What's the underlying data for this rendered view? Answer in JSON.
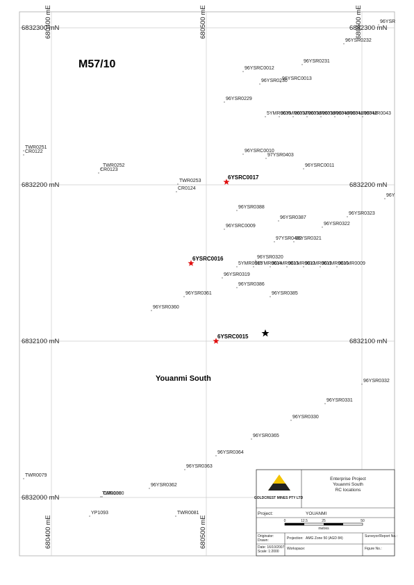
{
  "map": {
    "tenement": "M57/10",
    "area": "Youanmi South",
    "northings": [
      "6832300 mN",
      "6832200 mN",
      "6832100 mN",
      "6832000 mN"
    ],
    "eastings": [
      "680400 mE",
      "680500 mE",
      "680600 mE"
    ],
    "holes": [
      "96YSR",
      "96YSR0232",
      "96YSR0231",
      "96YSRC0012",
      "96YSRC0013",
      "96YSR0230",
      "96YSR0229",
      "5YMR0036",
      "96YMR0037",
      "96YMR0038",
      "96YMR0039",
      "96YMR0040",
      "96YMR0041",
      "96YMR0042",
      "96YMR0043",
      "TWR0251",
      "CR0122",
      "TWR0252",
      "CR0123",
      "96YSRC0010",
      "97YSR0403",
      "96YSRC0011",
      "TWR0253",
      "CR0124",
      "96Y",
      "96YSR0388",
      "96YSR0387",
      "96YSR0323",
      "96YSR0322",
      "96YSRC0009",
      "97YSR0402",
      "96YSR0321",
      "96YSR0320",
      "5YMR0015",
      "96YMR0014",
      "96YMR0013",
      "96YMR0012",
      "96YMR0011",
      "96YMR0010",
      "96YMR0009",
      "96YSR0319",
      "96YSR0386",
      "96YSR0361",
      "96YSR0385",
      "96YSR0360",
      "96YSR0332",
      "96YSR0331",
      "96YSR0330",
      "96YSR0365",
      "96YSR0364",
      "96YSR0363",
      "96YSR0362",
      "TWR0079",
      "TWR0080",
      "CR0130",
      "YP1093",
      "TWR0081"
    ],
    "highlighted": [
      "6YSRC0017",
      "6YSRC0016",
      "6YSRC0015"
    ]
  },
  "title_block": {
    "company": "GOLDCREST MINES PTY LTD",
    "heading": [
      "Enterprise Project",
      "Youanmi South",
      "RC locations"
    ],
    "project_label": "Project:",
    "project": "YOUANMI",
    "scale_ticks": [
      "0",
      "12.5",
      "25",
      "50"
    ],
    "scale_unit": "metres",
    "originator": "Originator:",
    "drawn": "Drawn:",
    "projection_label": "Projection:",
    "projection": "AMG Zone 50 (AGD 84)",
    "surveyor": "Surveyor/Report No.:",
    "date": "Date:   16/10/2007",
    "scale": "Scale:   1:2000",
    "workspace": "Workspace:",
    "figure": "Figure No.:"
  }
}
